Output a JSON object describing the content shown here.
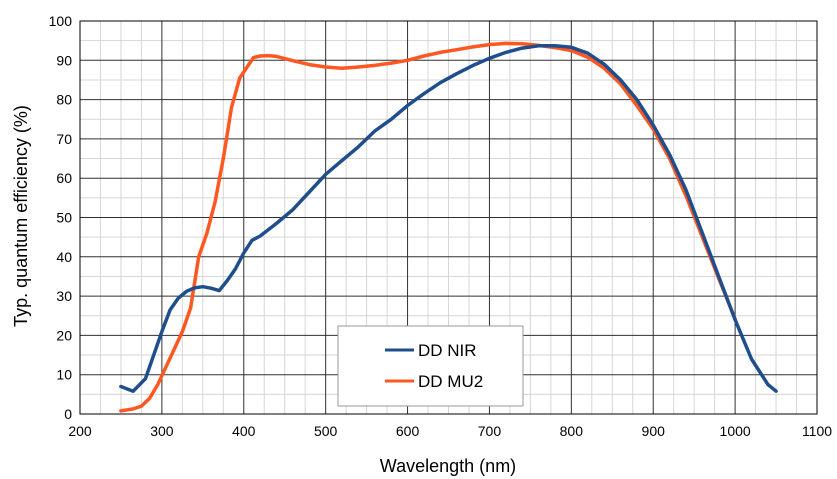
{
  "chart_data": {
    "type": "line",
    "xlabel": "Wavelength (nm)",
    "ylabel": "Typ. quantum efficiency (%)",
    "xlim": [
      200,
      1100
    ],
    "ylim": [
      0,
      100
    ],
    "xticks": [
      200,
      300,
      400,
      500,
      600,
      700,
      800,
      900,
      1000,
      1100
    ],
    "yticks": [
      0,
      10,
      20,
      30,
      40,
      50,
      60,
      70,
      80,
      90,
      100
    ],
    "grid": {
      "major": true,
      "minor": true
    },
    "legend_position": "bottom-center",
    "series": [
      {
        "name": "DD NIR",
        "color": "#1f4e8c",
        "points": [
          [
            250,
            7
          ],
          [
            265,
            5.8
          ],
          [
            280,
            9
          ],
          [
            290,
            15
          ],
          [
            300,
            21
          ],
          [
            310,
            26.5
          ],
          [
            320,
            29.5
          ],
          [
            330,
            31.2
          ],
          [
            340,
            32.1
          ],
          [
            350,
            32.4
          ],
          [
            360,
            32
          ],
          [
            370,
            31.4
          ],
          [
            380,
            34
          ],
          [
            390,
            37
          ],
          [
            400,
            41
          ],
          [
            410,
            44.2
          ],
          [
            420,
            45.3
          ],
          [
            440,
            48.5
          ],
          [
            460,
            52
          ],
          [
            480,
            56.5
          ],
          [
            500,
            61
          ],
          [
            520,
            64.5
          ],
          [
            540,
            68
          ],
          [
            560,
            72
          ],
          [
            580,
            75
          ],
          [
            600,
            78.5
          ],
          [
            620,
            81.5
          ],
          [
            640,
            84.3
          ],
          [
            660,
            86.6
          ],
          [
            680,
            88.7
          ],
          [
            700,
            90.5
          ],
          [
            720,
            92
          ],
          [
            740,
            93.1
          ],
          [
            760,
            93.7
          ],
          [
            780,
            93.7
          ],
          [
            800,
            93.3
          ],
          [
            820,
            91.8
          ],
          [
            840,
            89
          ],
          [
            860,
            85
          ],
          [
            880,
            80
          ],
          [
            900,
            73.5
          ],
          [
            920,
            66
          ],
          [
            940,
            57
          ],
          [
            960,
            46
          ],
          [
            980,
            35
          ],
          [
            1000,
            24
          ],
          [
            1020,
            14
          ],
          [
            1040,
            7.5
          ],
          [
            1050,
            5.8
          ]
        ]
      },
      {
        "name": "DD MU2",
        "color": "#ff5722",
        "points": [
          [
            250,
            0.8
          ],
          [
            265,
            1.3
          ],
          [
            275,
            2
          ],
          [
            285,
            4
          ],
          [
            295,
            7.5
          ],
          [
            305,
            12
          ],
          [
            315,
            16.5
          ],
          [
            325,
            21
          ],
          [
            335,
            27
          ],
          [
            345,
            40
          ],
          [
            355,
            46
          ],
          [
            365,
            54
          ],
          [
            375,
            65
          ],
          [
            385,
            78
          ],
          [
            395,
            85.5
          ],
          [
            405,
            88.6
          ],
          [
            412,
            90.7
          ],
          [
            420,
            91.1
          ],
          [
            430,
            91.2
          ],
          [
            440,
            91
          ],
          [
            460,
            89.9
          ],
          [
            480,
            88.9
          ],
          [
            500,
            88.3
          ],
          [
            520,
            88
          ],
          [
            540,
            88.3
          ],
          [
            560,
            88.7
          ],
          [
            580,
            89.3
          ],
          [
            600,
            90
          ],
          [
            620,
            91.1
          ],
          [
            640,
            92
          ],
          [
            660,
            92.7
          ],
          [
            680,
            93.4
          ],
          [
            700,
            94
          ],
          [
            720,
            94.3
          ],
          [
            740,
            94.2
          ],
          [
            760,
            93.8
          ],
          [
            780,
            93.2
          ],
          [
            800,
            92.5
          ],
          [
            820,
            90.8
          ],
          [
            840,
            88
          ],
          [
            860,
            84
          ],
          [
            880,
            78.5
          ],
          [
            900,
            72.5
          ],
          [
            920,
            65
          ],
          [
            940,
            55.5
          ],
          [
            960,
            45
          ],
          [
            980,
            34.5
          ],
          [
            1000,
            24.2
          ]
        ]
      }
    ]
  }
}
